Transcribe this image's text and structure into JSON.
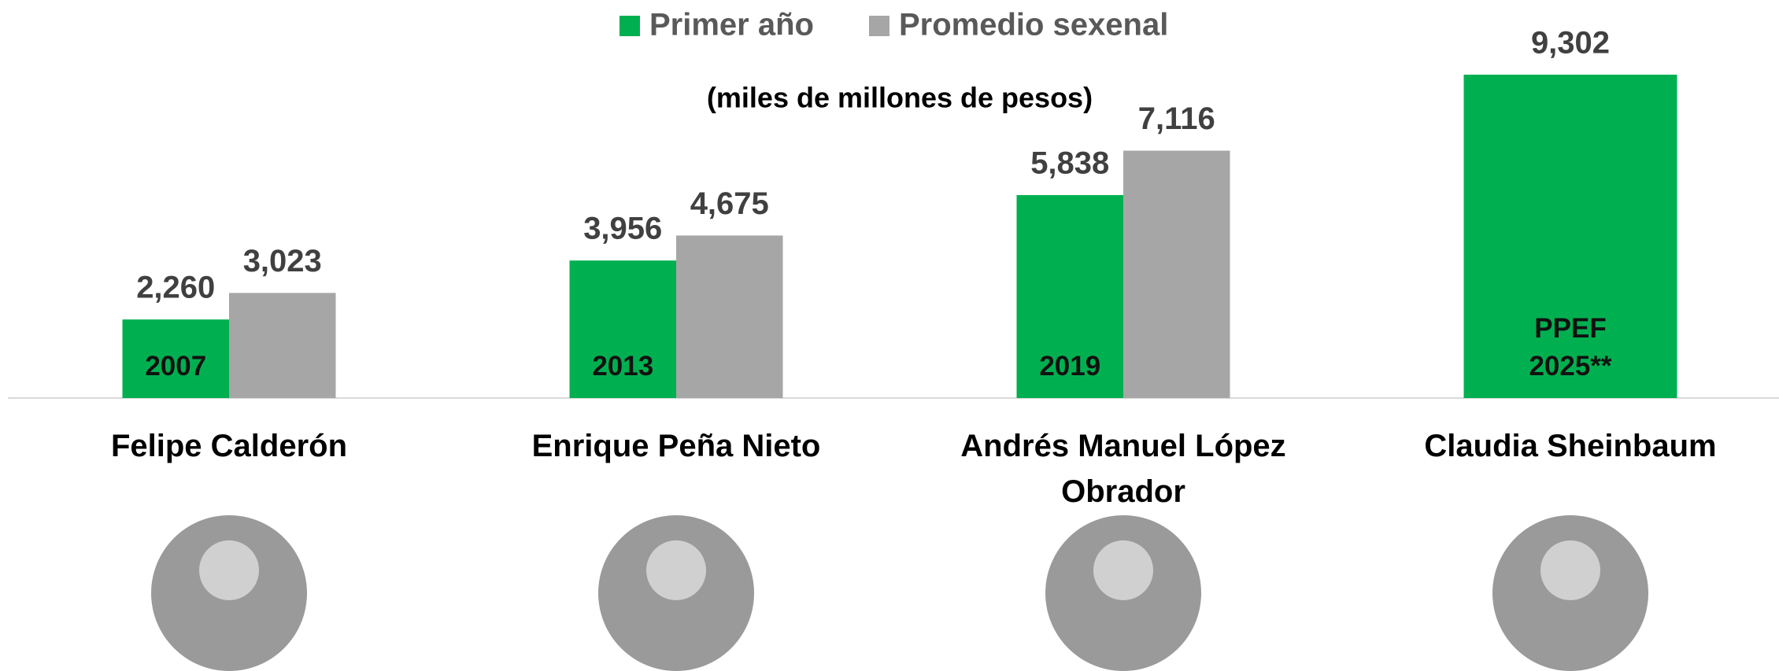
{
  "chart_data": {
    "type": "bar",
    "subtitle": "(miles de millones de pesos)",
    "categories": [
      "Felipe Calderón",
      "Enrique Peña Nieto",
      "Andrés Manuel López Obrador",
      "Claudia Sheinbaum"
    ],
    "bar_labels": [
      "2007",
      "2013",
      "2019",
      "PPEF 2025**"
    ],
    "series": [
      {
        "name": "Primer año",
        "color": "#00b050",
        "values": [
          2260,
          3956,
          5838,
          9302
        ],
        "value_labels": [
          "2,260",
          "3,956",
          "5,838",
          "9,302"
        ]
      },
      {
        "name": "Promedio sexenal",
        "color": "#a6a6a6",
        "values": [
          3023,
          4675,
          7116,
          null
        ],
        "value_labels": [
          "3,023",
          "4,675",
          "7,116",
          null
        ]
      }
    ],
    "ylim": [
      0,
      11450
    ],
    "legend": "top"
  }
}
